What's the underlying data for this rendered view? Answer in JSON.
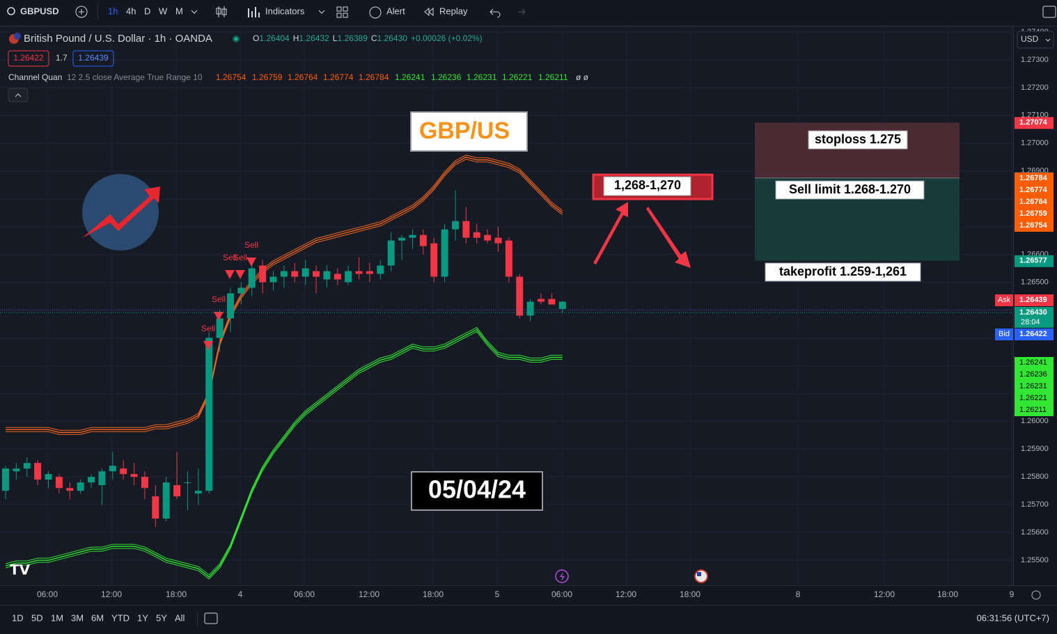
{
  "toolbar": {
    "symbol": "GBPUSD",
    "intervals": [
      "1h",
      "4h",
      "D",
      "W",
      "M"
    ],
    "indicators": "Indicators",
    "alert": "Alert",
    "replay": "Replay"
  },
  "header": {
    "title": "British Pound / U.S. Dollar · 1h · OANDA",
    "ohlc": [
      {
        "label": "O",
        "value": "1.26404"
      },
      {
        "label": "H",
        "value": "1.26432"
      },
      {
        "label": "L",
        "value": "1.26389"
      },
      {
        "label": "C",
        "value": "1.26430"
      }
    ],
    "change": "+0.00026 (+0.02%)",
    "bid": "1.26422",
    "spread": "1.7",
    "ask": "1.26439",
    "currency": "USD"
  },
  "indicator": {
    "name": "Channel Quan",
    "params": "12 2.5 close Average True Range 10",
    "values": [
      1.26754,
      1.26759,
      1.26764,
      1.26774,
      1.26784,
      1.26241,
      1.26236,
      1.26231,
      1.26221,
      1.26211
    ],
    "tail": "ø ø"
  },
  "chart_data": {
    "type": "candlestick",
    "ylim": [
      1.2541,
      1.2742
    ],
    "yticks": [
      {
        "value": 1.274,
        "label": "1.27400"
      },
      {
        "value": 1.273,
        "label": "1.27300"
      },
      {
        "value": 1.272,
        "label": "1.27200"
      },
      {
        "value": 1.271,
        "label": "1.27100"
      },
      {
        "value": 1.27,
        "label": "1.27000"
      },
      {
        "value": 1.269,
        "label": "1.26900"
      },
      {
        "value": 1.268,
        "label": "1.26800"
      },
      {
        "value": 1.267,
        "label": "1.26700"
      },
      {
        "value": 1.266,
        "label": "1.26600"
      },
      {
        "value": 1.265,
        "label": "1.26500"
      },
      {
        "value": 1.264,
        "label": "1.26400"
      },
      {
        "value": 1.263,
        "label": "1.26300"
      },
      {
        "value": 1.262,
        "label": "1.26200"
      },
      {
        "value": 1.261,
        "label": "1.26100"
      },
      {
        "value": 1.26,
        "label": "1.26000"
      },
      {
        "value": 1.259,
        "label": "1.25900"
      },
      {
        "value": 1.258,
        "label": "1.25800"
      },
      {
        "value": 1.257,
        "label": "1.25700"
      },
      {
        "value": 1.256,
        "label": "1.25600"
      },
      {
        "value": 1.255,
        "label": "1.25500"
      }
    ],
    "xticks": [
      "06:00",
      "12:00",
      "18:00",
      "4",
      "06:00",
      "12:00",
      "18:00",
      "5",
      "06:00",
      "12:00",
      "18:00",
      "8",
      "12:00",
      "18:00",
      "9"
    ],
    "open": [
      1.2575,
      1.2582,
      1.2583,
      1.2585,
      1.2579,
      1.258,
      1.2576,
      1.2575,
      1.2578,
      1.2577,
      1.2582,
      1.2583,
      1.2581,
      1.258,
      1.2573,
      1.2565,
      1.2577,
      1.2578,
      1.2574,
      1.2575,
      1.263,
      1.2637,
      1.2646,
      1.2648,
      1.2656,
      1.265,
      1.2652,
      1.2654,
      1.2652,
      1.2654,
      1.2651,
      1.2653,
      1.265,
      1.2654,
      1.2654,
      1.2653,
      1.2656,
      1.2665,
      1.2666,
      1.2667,
      1.2664,
      1.2652,
      1.2669,
      1.2672,
      1.2668,
      1.2667,
      1.2666,
      1.2665,
      1.2652,
      1.2638,
      1.2644,
      1.2644,
      1.26404
    ],
    "high": [
      1.2584,
      1.2585,
      1.2587,
      1.2586,
      1.2582,
      1.2581,
      1.2578,
      1.2579,
      1.2581,
      1.2583,
      1.2589,
      1.2586,
      1.2585,
      1.2582,
      1.2577,
      1.258,
      1.2589,
      1.2582,
      1.2583,
      1.2632,
      1.264,
      1.2648,
      1.265,
      1.2658,
      1.2658,
      1.2654,
      1.2656,
      1.2657,
      1.2658,
      1.2656,
      1.2656,
      1.2655,
      1.2656,
      1.2659,
      1.2657,
      1.2658,
      1.2668,
      1.2667,
      1.2669,
      1.2669,
      1.2666,
      1.2671,
      1.2683,
      1.2677,
      1.2671,
      1.2669,
      1.267,
      1.2666,
      1.2653,
      1.2644,
      1.2646,
      1.2646,
      1.26432
    ],
    "low": [
      1.2572,
      1.2579,
      1.258,
      1.2577,
      1.2576,
      1.2574,
      1.2572,
      1.2574,
      1.2576,
      1.257,
      1.2579,
      1.2579,
      1.2577,
      1.2572,
      1.2562,
      1.2564,
      1.2572,
      1.2568,
      1.257,
      1.2574,
      1.2625,
      1.2632,
      1.2642,
      1.2645,
      1.2646,
      1.2647,
      1.2648,
      1.265,
      1.2649,
      1.2646,
      1.2648,
      1.2649,
      1.2649,
      1.2651,
      1.265,
      1.2651,
      1.2654,
      1.2658,
      1.2662,
      1.266,
      1.265,
      1.265,
      1.2665,
      1.2664,
      1.2664,
      1.2664,
      1.2661,
      1.265,
      1.2637,
      1.2636,
      1.2642,
      1.2642,
      1.26389
    ],
    "close": [
      1.2583,
      1.2583,
      1.2585,
      1.2579,
      1.2581,
      1.2576,
      1.2575,
      1.2578,
      1.258,
      1.2582,
      1.2584,
      1.2581,
      1.258,
      1.2576,
      1.2565,
      1.2578,
      1.2573,
      1.2578,
      1.2575,
      1.263,
      1.2637,
      1.2646,
      1.2648,
      1.2655,
      1.265,
      1.2652,
      1.2654,
      1.2652,
      1.2655,
      1.2652,
      1.2654,
      1.2651,
      1.2654,
      1.2653,
      1.2653,
      1.2656,
      1.2665,
      1.2666,
      1.2667,
      1.2663,
      1.2652,
      1.2669,
      1.2672,
      1.2666,
      1.2666,
      1.2665,
      1.2664,
      1.2652,
      1.2638,
      1.2643,
      1.2643,
      1.2642,
      1.2643
    ],
    "upper_band": [
      1.2597,
      1.2597,
      1.2597,
      1.2597,
      1.2597,
      1.2596,
      1.2596,
      1.2596,
      1.2597,
      1.2597,
      1.2597,
      1.2597,
      1.2597,
      1.2597,
      1.2598,
      1.2598,
      1.2599,
      1.26,
      1.2602,
      1.261,
      1.2628,
      1.2638,
      1.2645,
      1.265,
      1.2654,
      1.2657,
      1.2659,
      1.2661,
      1.2663,
      1.2665,
      1.2666,
      1.2667,
      1.2668,
      1.2669,
      1.267,
      1.2671,
      1.2673,
      1.2675,
      1.2677,
      1.268,
      1.2684,
      1.2689,
      1.2693,
      1.2695,
      1.2694,
      1.2694,
      1.2693,
      1.2692,
      1.269,
      1.2686,
      1.2682,
      1.2678,
      1.2675
    ],
    "lower_band": [
      1.2548,
      1.2549,
      1.2549,
      1.255,
      1.255,
      1.2551,
      1.2552,
      1.2553,
      1.2554,
      1.2554,
      1.2555,
      1.2555,
      1.2555,
      1.2554,
      1.2552,
      1.255,
      1.2549,
      1.2548,
      1.2547,
      1.2544,
      1.2548,
      1.2555,
      1.2565,
      1.2575,
      1.2583,
      1.2589,
      1.2594,
      1.2599,
      1.2603,
      1.2606,
      1.2609,
      1.2612,
      1.2615,
      1.2618,
      1.262,
      1.2622,
      1.2623,
      1.2625,
      1.2627,
      1.2626,
      1.2626,
      1.2627,
      1.2629,
      1.2631,
      1.2633,
      1.2628,
      1.2624,
      1.2623,
      1.2623,
      1.2622,
      1.2622,
      1.2623,
      1.2623
    ],
    "signals": [
      "Sell",
      "Sell",
      "Sell",
      "Sell",
      "Sell"
    ]
  },
  "position_tool": {
    "stop": 1.27074,
    "entry": 1.26875,
    "target": 1.26577
  },
  "annotations": {
    "pair": "GBP/US",
    "date": "05/04/24",
    "zone": "1,268-1,270",
    "stoploss": "stoploss 1.275",
    "sell_limit": "Sell limit 1.268-1.270",
    "takeprofit": "takeprofit 1.259-1,261"
  },
  "axis_labels": {
    "ask": "Ask",
    "bid": "Bid",
    "countdown": "28:04"
  },
  "footer": {
    "ranges": [
      "1D",
      "5D",
      "1M",
      "3M",
      "6M",
      "YTD",
      "1Y",
      "5Y",
      "All"
    ],
    "clock": "06:31:56 (UTC+7)"
  }
}
